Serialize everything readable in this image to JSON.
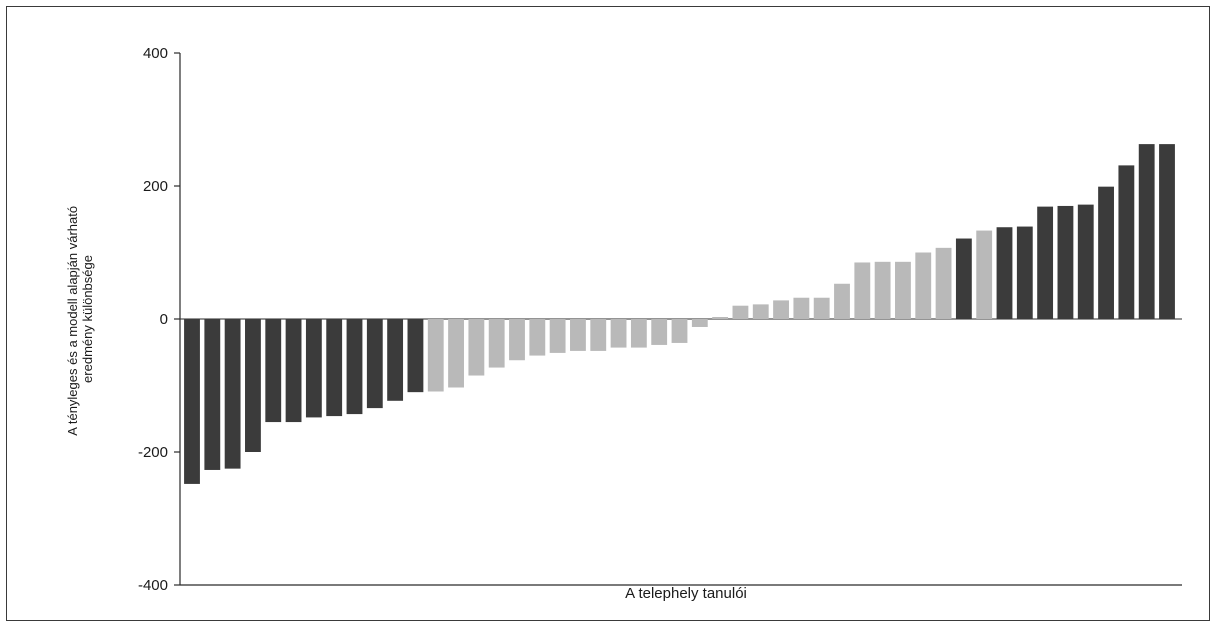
{
  "chart_data": {
    "type": "bar",
    "title": "",
    "xlabel": "A telephely tanulói",
    "ylabel_lines": [
      "A tényleges és a modell alapján várható",
      "eredmény különbsége"
    ],
    "ylim": [
      -400,
      400
    ],
    "yticks": [
      400,
      200,
      0,
      -200,
      -400
    ],
    "ytick_labels": [
      "400",
      "200",
      "0",
      "-200",
      "-400"
    ],
    "grid": false,
    "legend": "none",
    "colors": {
      "dark": "#3b3b3b",
      "light": "#b9b9b9",
      "axis": "#2a2a2a"
    },
    "series": [
      {
        "values": [
          -248,
          -227,
          -225,
          -200,
          -155,
          -155,
          -148,
          -146,
          -143,
          -134,
          -123,
          -110,
          -109,
          -103,
          -85,
          -73,
          -62,
          -55,
          -51,
          -48,
          -48,
          -43,
          -43,
          -39,
          -36,
          -12,
          3,
          20,
          22,
          28,
          32,
          32,
          53,
          85,
          86,
          86,
          100,
          107,
          121,
          133,
          138,
          139,
          169,
          170,
          172,
          199,
          231,
          263,
          263
        ],
        "categories": [
          "dark",
          "dark",
          "dark",
          "dark",
          "dark",
          "dark",
          "dark",
          "dark",
          "dark",
          "dark",
          "dark",
          "dark",
          "light",
          "light",
          "light",
          "light",
          "light",
          "light",
          "light",
          "light",
          "light",
          "light",
          "light",
          "light",
          "light",
          "light",
          "light",
          "light",
          "light",
          "light",
          "light",
          "light",
          "light",
          "light",
          "light",
          "light",
          "light",
          "light",
          "dark",
          "light",
          "dark",
          "dark",
          "dark",
          "dark",
          "dark",
          "dark",
          "dark",
          "dark",
          "dark"
        ]
      }
    ]
  }
}
